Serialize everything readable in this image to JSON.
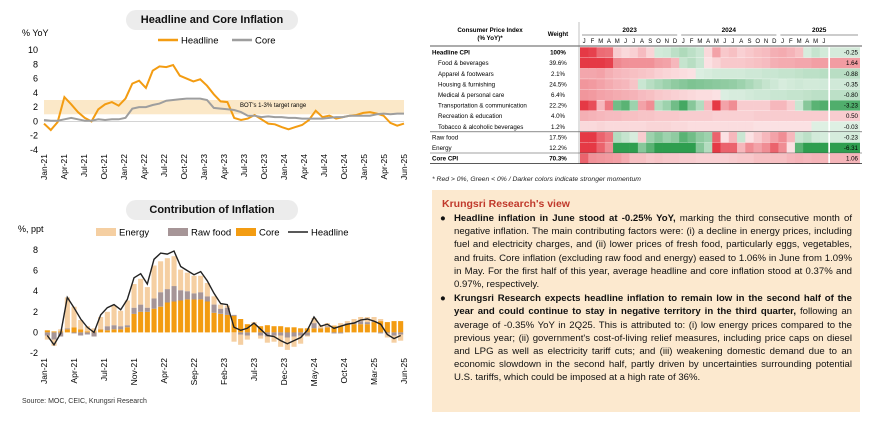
{
  "left": {
    "chart1_title": "Headline and Core Inflation",
    "chart2_title": "Contribution of Inflation",
    "source": "Source:  MOC, CEIC, Krungsri Research"
  },
  "chart_data": [
    {
      "type": "line",
      "title": "Headline and Core Inflation",
      "ylabel": "% YoY",
      "ylim": [
        -4,
        10
      ],
      "yticks": [
        -4,
        -2,
        0,
        2,
        4,
        6,
        8,
        10
      ],
      "xtick_labels": [
        "Jan-21",
        "Apr-21",
        "Jul-21",
        "Oct-21",
        "Jan-22",
        "Apr-22",
        "Jul-22",
        "Oct-22",
        "Jan-23",
        "Apr-23",
        "Jul-23",
        "Oct-23",
        "Jan-24",
        "Apr-24",
        "Jul-24",
        "Oct-24",
        "Jan-25",
        "Apr-25",
        "Jun-25"
      ],
      "band": {
        "low": 1,
        "high": 3,
        "label": "BOT's 1-3% target range",
        "color": "#fbe8c8"
      },
      "series": [
        {
          "name": "Headline",
          "color": "#f39c12",
          "values": [
            -0.3,
            -1.2,
            -0.1,
            3.4,
            2.4,
            1.3,
            0.5,
            0.0,
            1.7,
            2.4,
            2.7,
            2.2,
            3.2,
            5.3,
            5.7,
            4.7,
            7.1,
            7.7,
            7.6,
            7.9,
            6.4,
            6.0,
            5.6,
            5.9,
            5.0,
            3.8,
            2.8,
            2.7,
            0.5,
            0.2,
            0.4,
            0.9,
            0.3,
            -0.3,
            -0.4,
            -0.8,
            -1.1,
            -0.8,
            -0.5,
            0.2,
            1.5,
            0.6,
            0.8,
            0.4,
            0.6,
            0.8,
            0.9,
            1.2,
            1.3,
            1.1,
            0.8,
            -0.2,
            -0.6,
            -0.3
          ]
        },
        {
          "name": "Core",
          "color": "#9e9e9e",
          "values": [
            0.2,
            0.1,
            0.1,
            0.3,
            0.5,
            0.3,
            0.1,
            0.1,
            0.3,
            0.2,
            0.3,
            0.3,
            0.5,
            1.8,
            2.0,
            2.0,
            2.3,
            2.5,
            2.9,
            3.0,
            3.1,
            3.2,
            3.2,
            3.2,
            3.0,
            1.9,
            1.8,
            1.7,
            1.6,
            1.3,
            0.8,
            0.8,
            0.6,
            0.7,
            0.6,
            0.6,
            0.5,
            0.5,
            0.4,
            0.4,
            0.4,
            0.4,
            0.5,
            0.6,
            0.6,
            0.8,
            0.8,
            0.8,
            0.8,
            1.0,
            1.1,
            1.0,
            1.1,
            1.1
          ]
        }
      ],
      "legend": "top"
    },
    {
      "type": "bar",
      "stacked": true,
      "title": "Contribution of Inflation",
      "ylabel": "%, ppt",
      "ylim": [
        -2,
        8
      ],
      "yticks": [
        -2,
        0,
        2,
        4,
        6,
        8
      ],
      "xtick_labels": [
        "Jan-21",
        "Apr-21",
        "Jul-21",
        "Nov-21",
        "Apr-22",
        "Sep-22",
        "Feb-23",
        "Jul-23",
        "Dec-23",
        "May-24",
        "Oct-24",
        "Mar-25",
        "Jun-25"
      ],
      "series": [
        {
          "name": "Energy",
          "color": "#f5cfa2",
          "values": [
            -0.4,
            -0.6,
            0.2,
            3.0,
            2.0,
            0.9,
            0.5,
            0.3,
            1.2,
            1.4,
            1.9,
            1.5,
            2.4,
            2.3,
            2.5,
            2.0,
            3.2,
            3.0,
            3.0,
            2.9,
            2.0,
            1.8,
            1.7,
            1.6,
            1.3,
            0.8,
            0.4,
            0.2,
            -0.9,
            -1.0,
            -0.4,
            0.2,
            -0.3,
            -0.6,
            -0.6,
            -1.1,
            -1.2,
            -1.0,
            -0.8,
            -0.1,
            0.5,
            0.3,
            0.3,
            0.1,
            0.3,
            0.2,
            0.3,
            0.4,
            0.5,
            0.4,
            0.2,
            -0.4,
            -0.7,
            -0.6
          ]
        },
        {
          "name": "Raw food",
          "color": "#a69597",
          "values": [
            -0.3,
            -0.7,
            -0.4,
            0.1,
            -0.1,
            -0.3,
            -0.2,
            -0.4,
            0.0,
            0.4,
            0.4,
            0.3,
            0.2,
            0.6,
            0.7,
            0.4,
            1.0,
            1.4,
            1.3,
            1.5,
            1.0,
            0.8,
            0.6,
            0.7,
            0.5,
            0.8,
            0.5,
            0.7,
            0.1,
            -0.2,
            -0.3,
            0.0,
            -0.3,
            -0.4,
            -0.3,
            -0.3,
            -0.5,
            -0.4,
            -0.3,
            -0.3,
            0.5,
            0.0,
            0.1,
            -0.1,
            -0.1,
            0.1,
            0.2,
            0.3,
            0.2,
            0.1,
            -0.1,
            -0.1,
            -0.3,
            -0.2
          ]
        },
        {
          "name": "Core",
          "color": "#f39c12",
          "values": [
            0.2,
            0.1,
            0.1,
            0.3,
            0.5,
            0.3,
            0.1,
            0.1,
            0.3,
            0.2,
            0.3,
            0.3,
            0.5,
            1.8,
            2.0,
            2.0,
            2.3,
            2.5,
            2.9,
            3.0,
            3.1,
            3.2,
            3.2,
            3.2,
            3.0,
            1.9,
            1.8,
            1.7,
            1.6,
            1.3,
            0.8,
            0.8,
            0.6,
            0.7,
            0.6,
            0.6,
            0.5,
            0.5,
            0.4,
            0.4,
            0.4,
            0.4,
            0.5,
            0.6,
            0.6,
            0.8,
            0.8,
            0.8,
            0.8,
            1.0,
            1.1,
            1.0,
            1.1,
            1.1
          ]
        },
        {
          "name": "Headline",
          "color": "#222222",
          "type": "line",
          "values": [
            -0.3,
            -1.2,
            -0.1,
            3.4,
            2.4,
            1.3,
            0.5,
            0.0,
            1.7,
            2.4,
            2.7,
            2.2,
            3.2,
            5.3,
            5.7,
            4.7,
            7.1,
            7.7,
            7.6,
            7.9,
            6.4,
            6.0,
            5.6,
            5.9,
            5.0,
            3.8,
            2.8,
            2.7,
            0.5,
            0.2,
            0.4,
            0.9,
            0.3,
            -0.3,
            -0.4,
            -0.8,
            -1.1,
            -0.8,
            -0.5,
            0.2,
            1.5,
            0.6,
            0.8,
            0.4,
            0.6,
            0.8,
            0.9,
            1.2,
            1.3,
            1.1,
            0.8,
            -0.2,
            -0.6,
            -0.3
          ]
        }
      ],
      "legend": "top"
    },
    {
      "type": "heatmap",
      "title": "Consumer Price Index (% YoY)*",
      "header": {
        "col1": "Consumer Price Index",
        "col1b": "(% YoY)*",
        "weight": "Weight"
      },
      "years": [
        "2023",
        "2024",
        "2025"
      ],
      "months": [
        "J",
        "F",
        "M",
        "A",
        "M",
        "J",
        "J",
        "A",
        "S",
        "O",
        "N",
        "D"
      ],
      "months_2025": [
        "J",
        "F",
        "M",
        "A",
        "M",
        "J"
      ],
      "rows": [
        {
          "name": "Headline CPI",
          "weight": "100%",
          "latest": "-0.25",
          "bold": true,
          "vals": [
            5.0,
            3.8,
            2.8,
            2.7,
            0.5,
            0.2,
            0.4,
            0.9,
            0.3,
            -0.3,
            -0.4,
            -0.8,
            -1.1,
            -0.8,
            -0.5,
            0.2,
            1.5,
            0.6,
            0.8,
            0.4,
            0.6,
            0.8,
            0.9,
            1.2,
            1.3,
            1.1,
            0.8,
            -0.2,
            -0.6,
            -0.3
          ]
        },
        {
          "name": "Food & beverages",
          "weight": "39.6%",
          "latest": "1.64",
          "vals": [
            7.7,
            6.0,
            4.7,
            3.8,
            2.1,
            1.9,
            1.9,
            1.9,
            1.9,
            1.6,
            1.5,
            1.0,
            -0.6,
            -0.9,
            -0.5,
            0.0,
            0.3,
            0.6,
            0.6,
            0.6,
            0.7,
            0.8,
            0.9,
            1.2,
            1.3,
            1.3,
            1.4,
            1.4,
            1.6,
            1.6
          ]
        },
        {
          "name": "Apparel & footwears",
          "weight": "2.1%",
          "latest": "-0.88",
          "vals": [
            1.4,
            1.4,
            1.5,
            1.2,
            1.0,
            0.9,
            0.8,
            0.7,
            0.6,
            0.4,
            0.3,
            0.2,
            0.1,
            0.0,
            -0.1,
            -0.2,
            -0.3,
            -0.3,
            -0.3,
            -0.3,
            -0.4,
            -0.4,
            -0.5,
            -0.5,
            -0.6,
            -0.6,
            -0.7,
            -0.8,
            -0.8,
            -0.9
          ]
        },
        {
          "name": "Housing & furnishing",
          "weight": "24.5%",
          "latest": "-0.35",
          "vals": [
            1.8,
            1.7,
            1.5,
            1.3,
            1.1,
            1.0,
            0.7,
            -0.5,
            -0.9,
            -1.2,
            -1.5,
            -1.8,
            -2.0,
            -2.2,
            -2.1,
            -2.0,
            -1.9,
            -1.8,
            -1.7,
            -1.5,
            -1.2,
            -0.9,
            -0.6,
            -0.4,
            -0.2,
            -0.3,
            -0.4,
            -0.3,
            -0.3,
            -0.35
          ]
        },
        {
          "name": "Medical & personal care",
          "weight": "6.4%",
          "latest": "-0.80",
          "vals": [
            1.8,
            1.7,
            1.5,
            1.4,
            1.3,
            1.2,
            1.1,
            0.9,
            0.8,
            0.6,
            0.5,
            0.4,
            0.3,
            0.2,
            0.1,
            0.1,
            0.0,
            -0.1,
            -0.2,
            -0.2,
            -0.3,
            -0.4,
            -0.4,
            -0.5,
            -0.5,
            -0.6,
            -0.6,
            -0.7,
            -0.8,
            -0.8
          ]
        },
        {
          "name": "Transportation & communication",
          "weight": "22.2%",
          "latest": "-3.23",
          "vals": [
            6.0,
            3.5,
            1.0,
            2.5,
            -2.5,
            -3.0,
            -1.5,
            1.5,
            2.0,
            -1.0,
            -1.5,
            -2.5,
            -3.5,
            -2.0,
            -1.0,
            1.0,
            4.0,
            1.5,
            2.0,
            0.5,
            0.5,
            0.5,
            0.5,
            1.0,
            1.0,
            0.5,
            -0.5,
            -2.0,
            -3.0,
            -3.23
          ]
        },
        {
          "name": "Recreation & education",
          "weight": "4.0%",
          "latest": "0.50",
          "vals": [
            1.2,
            1.1,
            1.0,
            0.9,
            0.9,
            0.8,
            0.8,
            0.7,
            0.7,
            0.6,
            0.6,
            0.6,
            0.5,
            0.5,
            0.5,
            0.5,
            0.4,
            0.4,
            0.4,
            0.4,
            0.4,
            0.5,
            0.5,
            0.5,
            0.5,
            0.5,
            0.5,
            0.5,
            0.5,
            0.5
          ]
        },
        {
          "name": "Tobacco & alcoholic beverages",
          "weight": "1.2%",
          "latest": "-0.03",
          "vals": [
            0.2,
            0.2,
            0.3,
            0.2,
            0.2,
            0.2,
            0.2,
            0.2,
            0.3,
            0.3,
            0.3,
            0.2,
            0.2,
            0.1,
            0.1,
            0.1,
            0.1,
            0.1,
            0.1,
            0.1,
            0.1,
            0.0,
            0.0,
            0.0,
            0.0,
            0.0,
            0.0,
            0.0,
            -0.03,
            -0.03
          ]
        },
        {
          "name": "Raw food",
          "weight": "17.5%",
          "latest": "-0.23",
          "sep": true,
          "vals": [
            5.0,
            4.0,
            3.0,
            2.5,
            -1.0,
            -0.6,
            -0.2,
            0.5,
            -1.5,
            -2.0,
            -1.5,
            -1.8,
            -3.0,
            -2.5,
            -1.8,
            -1.5,
            3.0,
            0.0,
            1.0,
            -0.5,
            0.0,
            0.5,
            1.0,
            1.5,
            2.0,
            1.0,
            -0.5,
            -0.8,
            -0.3,
            -0.23
          ]
        },
        {
          "name": "Energy",
          "weight": "12.2%",
          "latest": "-6.31",
          "vals": [
            12.0,
            10.0,
            3.0,
            2.0,
            -10.0,
            -8.0,
            -6.0,
            -2.0,
            -3.0,
            -5.0,
            -6.0,
            -7.0,
            -8.0,
            -4.0,
            -2.0,
            -1.0,
            6.0,
            3.0,
            3.0,
            1.0,
            2.0,
            1.5,
            2.0,
            3.0,
            2.0,
            0.0,
            -3.0,
            -5.0,
            -6.0,
            -6.31
          ]
        },
        {
          "name": "Core CPI",
          "weight": "70.3%",
          "latest": "1.06",
          "bold": true,
          "sep": true,
          "vals": [
            3.0,
            1.9,
            1.8,
            1.7,
            1.6,
            1.3,
            0.8,
            0.8,
            0.6,
            0.7,
            0.6,
            0.6,
            0.5,
            0.5,
            0.4,
            0.4,
            0.4,
            0.4,
            0.5,
            0.6,
            0.6,
            0.8,
            0.8,
            0.8,
            0.8,
            1.0,
            1.1,
            1.0,
            1.1,
            1.06
          ]
        }
      ],
      "note": "* Red > 0%, Green < 0% / Darker colors indicate stronger momentum",
      "pos_color": "#e53945",
      "neg_color": "#2e9e4f"
    }
  ],
  "view": {
    "title": "Krungsri Research's view",
    "bullets": [
      {
        "bold": "Headline inflation in June stood at -0.25% YoY,",
        "text": " marking the third consecutive month of negative inflation. The main contributing factors were: (i) a decline in energy prices, including fuel and electricity charges, and (ii) lower prices of fresh food, particularly eggs, vegetables, and fruits. Core inflation (excluding raw food and energy) eased to 1.06% in June from 1.09% in May. For the first half of this year, average headline and core inflation stood at 0.37% and 0.97%, respectively."
      },
      {
        "bold": "Krungsri Research expects headline inflation to remain low in the second half of the year and could continue to stay in negative territory in the third quarter,",
        "text": " following an average of -0.35% YoY in 2Q25. This is attributed to: (i) low energy prices compared to the previous year; (ii) government's cost-of-living relief measures, including price caps on diesel and LPG as well as electricity tariff cuts; and (iii) weakening domestic demand due to an economic slowdown in the second half, partly driven by uncertainties surrounding potential U.S. tariffs, which could be imposed at a high rate of 36%."
      }
    ]
  }
}
